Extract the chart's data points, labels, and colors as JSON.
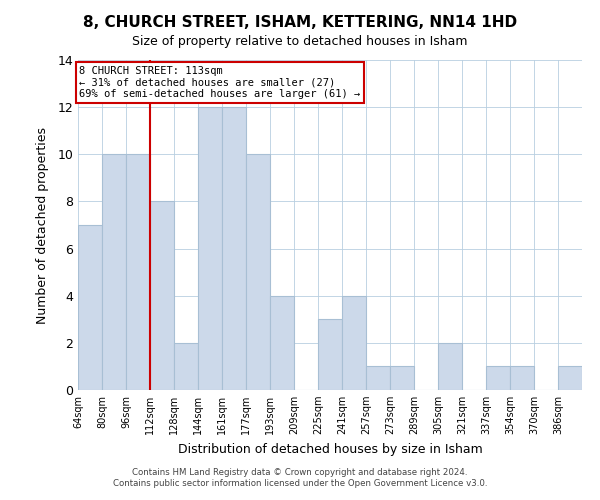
{
  "title": "8, CHURCH STREET, ISHAM, KETTERING, NN14 1HD",
  "subtitle": "Size of property relative to detached houses in Isham",
  "xlabel": "Distribution of detached houses by size in Isham",
  "ylabel": "Number of detached properties",
  "bin_labels": [
    "64sqm",
    "80sqm",
    "96sqm",
    "112sqm",
    "128sqm",
    "144sqm",
    "161sqm",
    "177sqm",
    "193sqm",
    "209sqm",
    "225sqm",
    "241sqm",
    "257sqm",
    "273sqm",
    "289sqm",
    "305sqm",
    "321sqm",
    "337sqm",
    "354sqm",
    "370sqm",
    "386sqm"
  ],
  "bar_values": [
    7,
    10,
    10,
    8,
    2,
    12,
    12,
    10,
    4,
    0,
    3,
    4,
    1,
    1,
    0,
    2,
    0,
    1,
    1,
    0,
    1
  ],
  "bar_color": "#ccd9ea",
  "bar_edge_color": "#a8bfd4",
  "annotation_label": "8 CHURCH STREET: 113sqm",
  "annotation_line1": "← 31% of detached houses are smaller (27)",
  "annotation_line2": "69% of semi-detached houses are larger (61) →",
  "annotation_box_facecolor": "#ffffff",
  "annotation_box_edgecolor": "#cc0000",
  "line_color": "#cc0000",
  "property_line_bin_index": 3,
  "ylim": [
    0,
    14
  ],
  "yticks": [
    0,
    2,
    4,
    6,
    8,
    10,
    12,
    14
  ],
  "footer1": "Contains HM Land Registry data © Crown copyright and database right 2024.",
  "footer2": "Contains public sector information licensed under the Open Government Licence v3.0."
}
